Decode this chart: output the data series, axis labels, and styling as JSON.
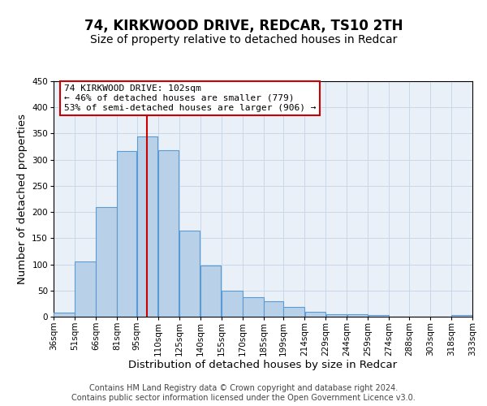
{
  "title": "74, KIRKWOOD DRIVE, REDCAR, TS10 2TH",
  "subtitle": "Size of property relative to detached houses in Redcar",
  "xlabel": "Distribution of detached houses by size in Redcar",
  "ylabel": "Number of detached properties",
  "bar_left_edges": [
    36,
    51,
    66,
    81,
    95,
    110,
    125,
    140,
    155,
    170,
    185,
    199,
    214,
    229,
    244,
    259,
    274,
    288,
    303,
    318
  ],
  "bar_widths": [
    15,
    15,
    15,
    14,
    15,
    15,
    15,
    15,
    15,
    15,
    14,
    15,
    15,
    15,
    15,
    15,
    14,
    15,
    15,
    15
  ],
  "bar_heights": [
    7,
    105,
    210,
    316,
    345,
    318,
    165,
    97,
    50,
    37,
    30,
    18,
    9,
    5,
    5,
    3,
    0,
    0,
    0,
    3
  ],
  "tick_labels": [
    "36sqm",
    "51sqm",
    "66sqm",
    "81sqm",
    "95sqm",
    "110sqm",
    "125sqm",
    "140sqm",
    "155sqm",
    "170sqm",
    "185sqm",
    "199sqm",
    "214sqm",
    "229sqm",
    "244sqm",
    "259sqm",
    "274sqm",
    "288sqm",
    "303sqm",
    "318sqm",
    "333sqm"
  ],
  "ylim": [
    0,
    450
  ],
  "yticks": [
    0,
    50,
    100,
    150,
    200,
    250,
    300,
    350,
    400,
    450
  ],
  "bar_color": "#b8d0e8",
  "bar_edge_color": "#5b9bd5",
  "bar_edge_width": 0.8,
  "vline_x": 102,
  "vline_color": "#cc0000",
  "annotation_title": "74 KIRKWOOD DRIVE: 102sqm",
  "annotation_line1": "← 46% of detached houses are smaller (779)",
  "annotation_line2": "53% of semi-detached houses are larger (906) →",
  "annotation_box_color": "#ffffff",
  "annotation_box_edge_color": "#cc0000",
  "footer_line1": "Contains HM Land Registry data © Crown copyright and database right 2024.",
  "footer_line2": "Contains public sector information licensed under the Open Government Licence v3.0.",
  "background_color": "#ffffff",
  "axes_bg_color": "#eaf0f8",
  "grid_color": "#c8d8e8",
  "title_fontsize": 12,
  "subtitle_fontsize": 10,
  "axis_label_fontsize": 9.5,
  "tick_fontsize": 7.5,
  "footer_fontsize": 7,
  "ann_fontsize": 8
}
